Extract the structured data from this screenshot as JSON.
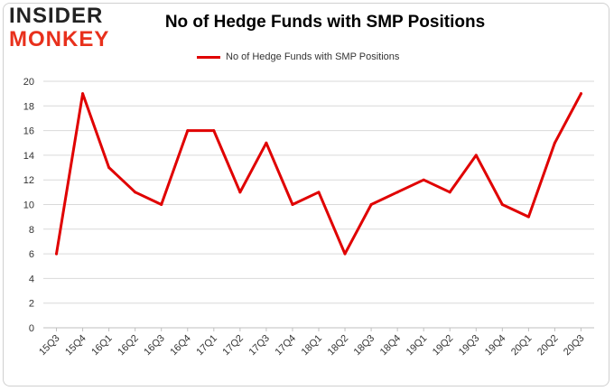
{
  "brand": {
    "line1": "INSIDER",
    "line2": "MONKEY"
  },
  "chart_data": {
    "type": "line",
    "title": "No of Hedge Funds with SMP Positions",
    "xlabel": "",
    "ylabel": "",
    "categories": [
      "15Q3",
      "15Q4",
      "16Q1",
      "16Q2",
      "16Q3",
      "16Q4",
      "17Q1",
      "17Q2",
      "17Q3",
      "17Q4",
      "18Q1",
      "18Q2",
      "18Q3",
      "18Q4",
      "19Q1",
      "19Q2",
      "19Q3",
      "19Q4",
      "20Q1",
      "20Q2",
      "20Q3"
    ],
    "series": [
      {
        "name": "No of Hedge Funds with SMP Positions",
        "values": [
          6,
          19,
          13,
          11,
          10,
          16,
          16,
          11,
          15,
          10,
          11,
          6,
          10,
          11,
          12,
          11,
          14,
          10,
          9,
          15,
          19
        ],
        "color": "#e00000"
      }
    ],
    "ylim": [
      0,
      20
    ],
    "yticks": [
      0,
      2,
      4,
      6,
      8,
      10,
      12,
      14,
      16,
      18,
      20
    ],
    "grid": true,
    "legend_position": "top"
  }
}
